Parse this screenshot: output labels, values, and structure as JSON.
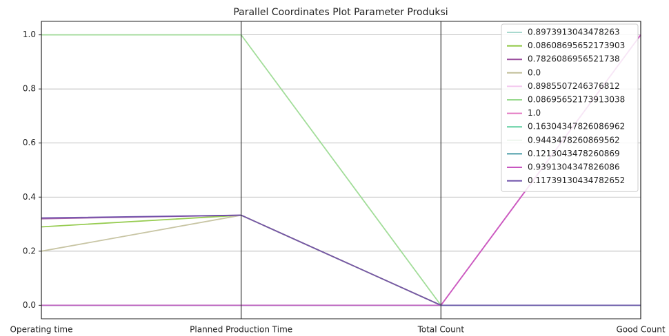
{
  "chart_data": {
    "type": "parallel",
    "title": "Parallel Coordinates Plot Parameter Produksi",
    "categories": [
      "Operating time",
      "Planned Production Time",
      "Total Count",
      "Good Count"
    ],
    "ylim": [
      -0.05,
      1.05
    ],
    "yticks": [
      {
        "value": 0,
        "label": "0.0"
      },
      {
        "value": 0.2,
        "label": "0.2"
      },
      {
        "value": 0.4,
        "label": "0.4"
      },
      {
        "value": 0.6,
        "label": "0.6"
      },
      {
        "value": 0.8,
        "label": "0.8"
      },
      {
        "value": 1,
        "label": "1.0"
      }
    ],
    "grid": true,
    "legend": "upper right",
    "series": [
      {
        "name": "0.8973913043478263",
        "color": "#a9d9cf",
        "values": [
          0,
          0,
          0,
          0
        ]
      },
      {
        "name": "0.08608695652173903",
        "color": "#8cc63f",
        "values": [
          0.29,
          0.333,
          0,
          0
        ]
      },
      {
        "name": "0.7826086956521738",
        "color": "#9b4f9e",
        "values": [
          0.32,
          0.333,
          0,
          0
        ]
      },
      {
        "name": "0.0",
        "color": "#c2bf9a",
        "values": [
          0.2,
          0.333,
          0,
          0
        ]
      },
      {
        "name": "0.8985507246376812",
        "color": "#f3c6ee",
        "values": [
          0,
          0,
          0,
          1
        ]
      },
      {
        "name": "0.08695652173913038",
        "color": "#98d98e",
        "values": [
          1,
          1,
          0,
          0
        ]
      },
      {
        "name": "1.0",
        "color": "#e377c2",
        "values": [
          0,
          0,
          0,
          1
        ]
      },
      {
        "name": "0.16304347826086962",
        "color": "#5fcf9f",
        "values": [
          0,
          0,
          0,
          0
        ]
      },
      {
        "name": "0.9443478260869562",
        "color": "#eef6ee",
        "values": [
          0,
          0,
          0,
          0
        ]
      },
      {
        "name": "0.1213043478260869",
        "color": "#4a9ca8",
        "values": [
          0,
          0,
          0,
          0
        ]
      },
      {
        "name": "0.9391304347826086",
        "color": "#c856c0",
        "values": [
          0,
          0,
          0,
          1
        ]
      },
      {
        "name": "0.11739130434782652",
        "color": "#6a4ca8",
        "values": [
          0.323,
          0.333,
          0,
          0
        ]
      }
    ]
  }
}
